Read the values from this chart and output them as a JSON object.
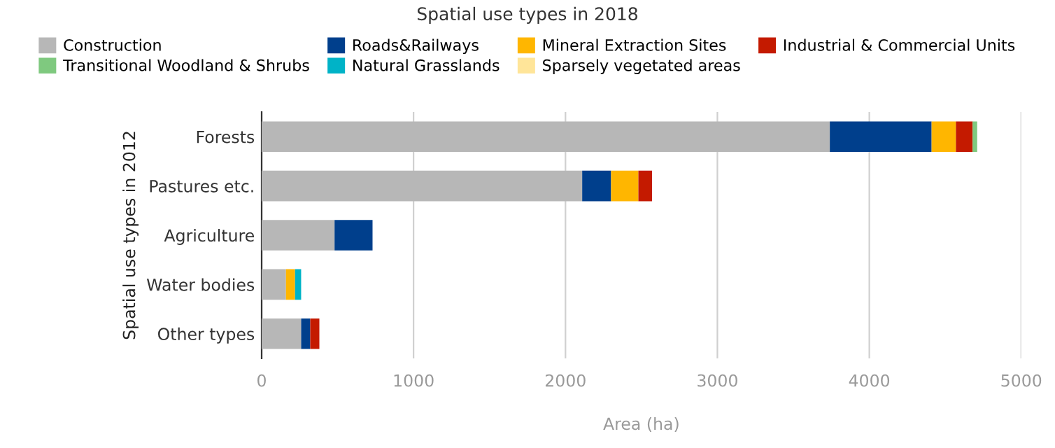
{
  "chart_data": {
    "type": "bar",
    "orientation": "horizontal",
    "stacked": true,
    "title": "Spatial use types in 2018",
    "xlabel": "Area (ha)",
    "ylabel": "Spatial use types in 2012",
    "categories": [
      "Forests",
      "Pastures etc.",
      "Agriculture",
      "Water bodies",
      "Other types"
    ],
    "series": [
      {
        "name": "Construction",
        "color": "#b7b7b7",
        "values": [
          3740,
          2110,
          480,
          160,
          260
        ]
      },
      {
        "name": "Roads&Railways",
        "color": "#003f8c",
        "values": [
          670,
          190,
          250,
          0,
          60
        ]
      },
      {
        "name": "Mineral Extraction Sites",
        "color": "#ffb600",
        "values": [
          160,
          180,
          0,
          60,
          0
        ]
      },
      {
        "name": "Industrial & Commercial Units",
        "color": "#c41a00",
        "values": [
          110,
          90,
          0,
          0,
          60
        ]
      },
      {
        "name": "Transitional Woodland & Shrubs",
        "color": "#7fc97f",
        "values": [
          30,
          0,
          0,
          0,
          0
        ]
      },
      {
        "name": "Natural Grasslands",
        "color": "#00b3c7",
        "values": [
          0,
          0,
          0,
          40,
          0
        ]
      },
      {
        "name": "Sparsely vegetated areas",
        "color": "#ffe599",
        "values": [
          0,
          0,
          0,
          0,
          0
        ]
      }
    ],
    "xlim": [
      0,
      5000
    ],
    "xticks": [
      0,
      1000,
      2000,
      3000,
      4000,
      5000
    ],
    "grid": "x",
    "legend": "top"
  }
}
